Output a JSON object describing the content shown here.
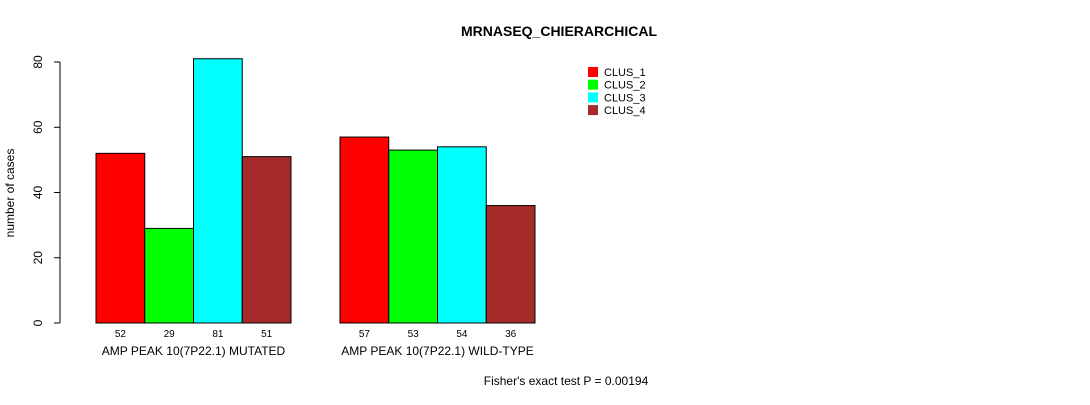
{
  "chart_data": {
    "type": "bar",
    "title": "MRNASEQ_CHIERARCHICAL",
    "xlabel": "",
    "ylabel": "number of cases",
    "ylim": [
      0,
      80
    ],
    "yticks": [
      "0",
      "20",
      "40",
      "60",
      "80"
    ],
    "ytick_values": [
      0,
      20,
      40,
      60,
      80
    ],
    "groups": [
      "AMP PEAK 10(7P22.1) MUTATED",
      "AMP PEAK 10(7P22.1) WILD-TYPE"
    ],
    "series": [
      {
        "name": "CLUS_1",
        "color": "#ff0000",
        "values": [
          52,
          57
        ]
      },
      {
        "name": "CLUS_2",
        "color": "#00ff00",
        "values": [
          29,
          53
        ]
      },
      {
        "name": "CLUS_3",
        "color": "#00ffff",
        "values": [
          81,
          54
        ]
      },
      {
        "name": "CLUS_4",
        "color": "#a52a2a",
        "values": [
          51,
          36
        ]
      }
    ],
    "value_labels": [
      [
        "52",
        "29",
        "81",
        "51"
      ],
      [
        "57",
        "53",
        "54",
        "36"
      ]
    ],
    "legend_position": "top-right",
    "annotation": "Fisher's exact test P = 0.00194",
    "grid": false
  }
}
